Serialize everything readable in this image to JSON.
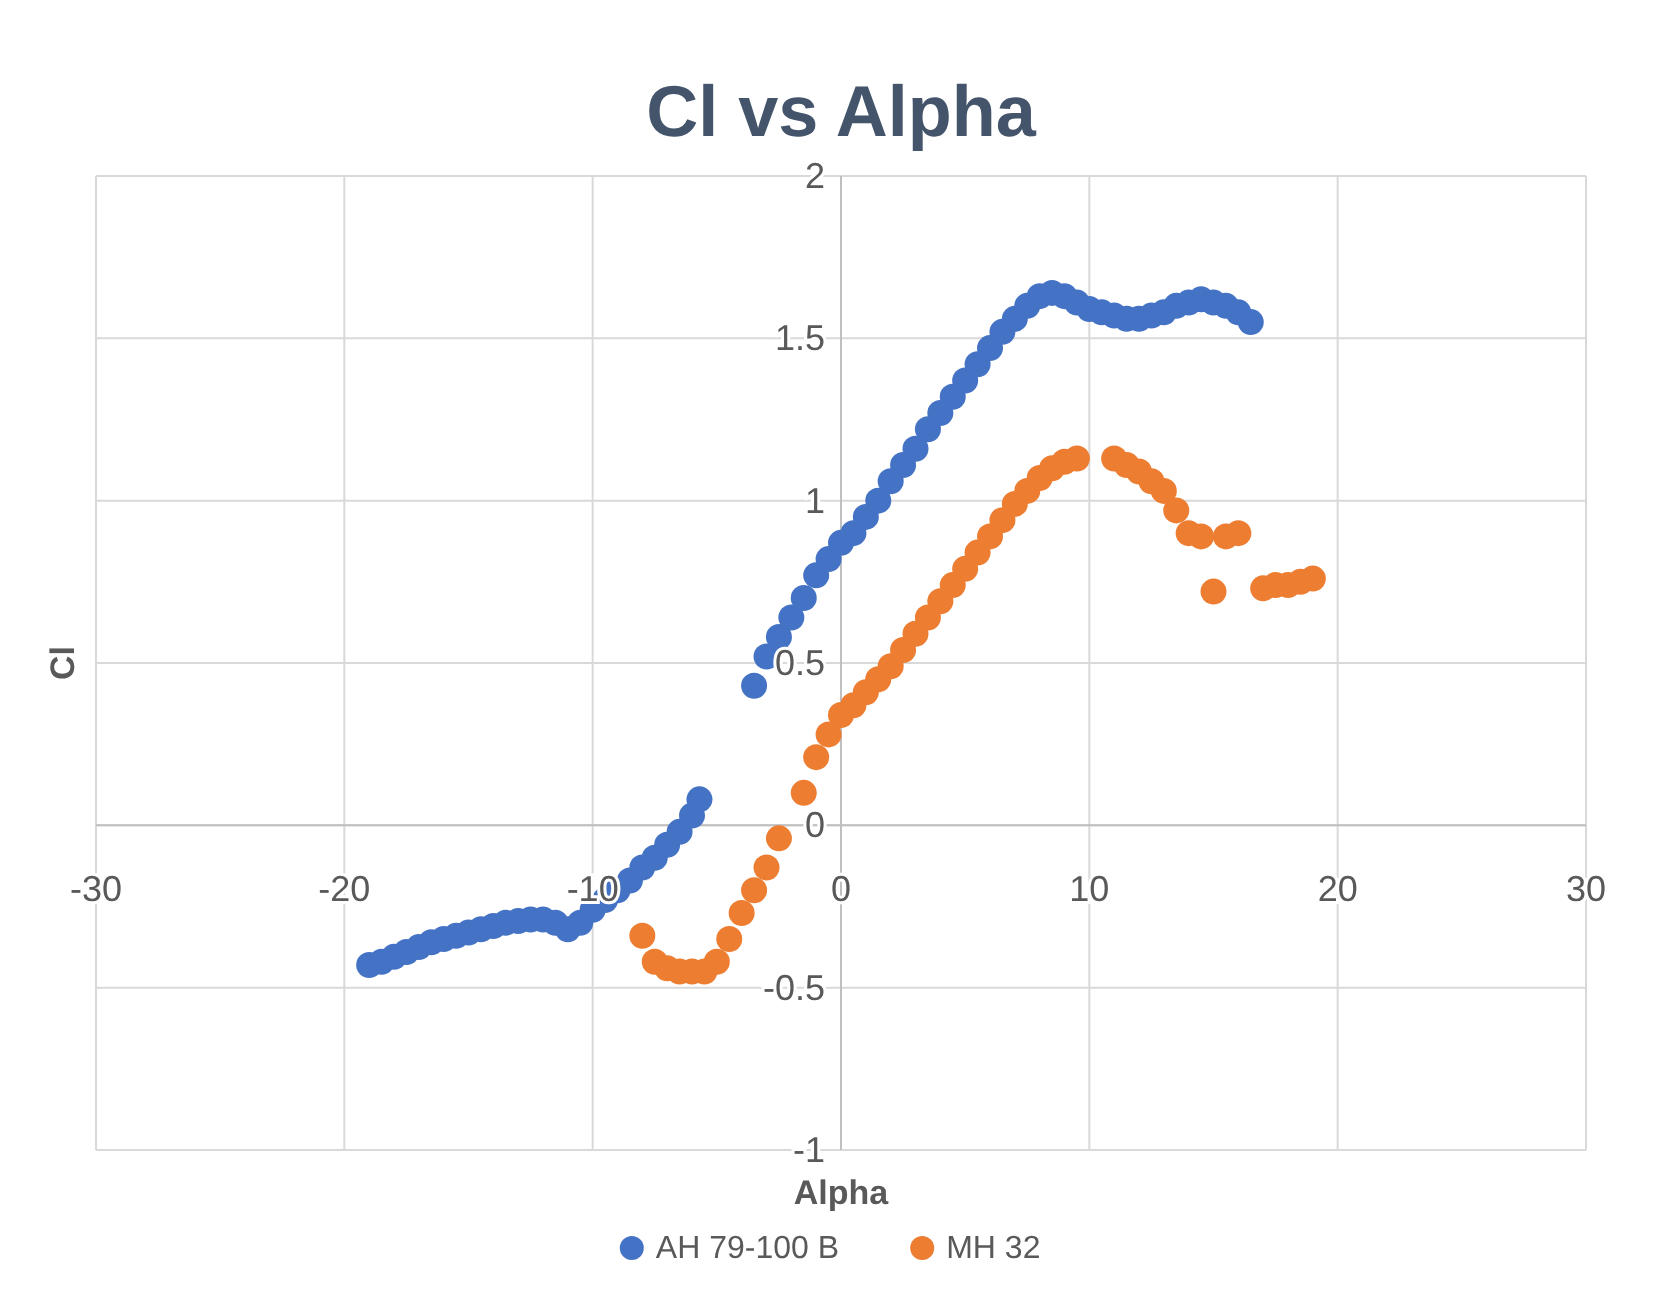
{
  "chart_data": {
    "type": "scatter",
    "title": "Cl vs Alpha",
    "xlabel": "Alpha",
    "ylabel": "Cl",
    "xlim": [
      -30,
      30
    ],
    "xticks": [
      -30,
      -20,
      -10,
      0,
      10,
      20,
      30
    ],
    "ylim": [
      -1,
      2
    ],
    "yticks": [
      -1,
      -0.5,
      0,
      0.5,
      1,
      1.5,
      2
    ],
    "grid": true,
    "legend": "bottom",
    "marker": "circle",
    "series": [
      {
        "name": "AH 79-100 B",
        "color": "#4472c4",
        "x": [
          -19,
          -18.5,
          -18,
          -17.5,
          -17,
          -16.5,
          -16,
          -15.5,
          -15,
          -14.5,
          -14,
          -13.5,
          -13,
          -12.5,
          -12,
          -11.5,
          -11,
          -10.5,
          -10,
          -9.5,
          -9,
          -8.5,
          -8,
          -7.5,
          -7,
          -6.5,
          -6,
          -5.7,
          -3.5,
          -3,
          -2.5,
          -2,
          -1.5,
          -1,
          -0.5,
          0,
          0.5,
          1,
          1.5,
          2,
          2.5,
          3,
          3.5,
          4,
          4.5,
          5,
          5.5,
          6,
          6.5,
          7,
          7.5,
          8,
          8.5,
          9,
          9.5,
          10,
          10.5,
          11,
          11.5,
          12,
          12.5,
          13,
          13.5,
          14,
          14.5,
          15,
          15.5,
          16,
          16.5
        ],
        "values": [
          -0.43,
          -0.42,
          -0.405,
          -0.39,
          -0.375,
          -0.36,
          -0.35,
          -0.34,
          -0.33,
          -0.32,
          -0.31,
          -0.3,
          -0.295,
          -0.29,
          -0.29,
          -0.3,
          -0.32,
          -0.3,
          -0.26,
          -0.23,
          -0.2,
          -0.17,
          -0.13,
          -0.1,
          -0.06,
          -0.02,
          0.03,
          0.08,
          0.43,
          0.52,
          0.58,
          0.64,
          0.7,
          0.77,
          0.82,
          0.87,
          0.9,
          0.95,
          1,
          1.06,
          1.11,
          1.16,
          1.22,
          1.27,
          1.32,
          1.37,
          1.42,
          1.47,
          1.52,
          1.56,
          1.6,
          1.63,
          1.64,
          1.63,
          1.61,
          1.59,
          1.58,
          1.57,
          1.56,
          1.56,
          1.57,
          1.58,
          1.6,
          1.61,
          1.62,
          1.61,
          1.6,
          1.58,
          1.55
        ]
      },
      {
        "name": "MH 32",
        "color": "#ed7d31",
        "x": [
          -8,
          -7.5,
          -7,
          -6.5,
          -6,
          -5.5,
          -5,
          -4.5,
          -4,
          -3.5,
          -3,
          -2.5,
          -1.5,
          -1,
          -0.5,
          0,
          0.5,
          1,
          1.5,
          2,
          2.5,
          3,
          3.5,
          4,
          4.5,
          5,
          5.5,
          6,
          6.5,
          7,
          7.5,
          8,
          8.5,
          9,
          9.5,
          11,
          11.5,
          12,
          12.5,
          13,
          13.5,
          14,
          14.5,
          15,
          15.5,
          16,
          17,
          17.5,
          18,
          18.5,
          19
        ],
        "values": [
          -0.34,
          -0.42,
          -0.44,
          -0.45,
          -0.45,
          -0.45,
          -0.42,
          -0.35,
          -0.27,
          -0.2,
          -0.13,
          -0.04,
          0.1,
          0.21,
          0.28,
          0.34,
          0.37,
          0.41,
          0.45,
          0.49,
          0.54,
          0.59,
          0.64,
          0.69,
          0.74,
          0.79,
          0.84,
          0.89,
          0.94,
          0.99,
          1.03,
          1.07,
          1.1,
          1.12,
          1.13,
          1.13,
          1.11,
          1.09,
          1.06,
          1.03,
          0.97,
          0.9,
          0.89,
          0.72,
          0.89,
          0.9,
          0.73,
          0.74,
          0.74,
          0.75,
          0.76
        ]
      }
    ]
  }
}
